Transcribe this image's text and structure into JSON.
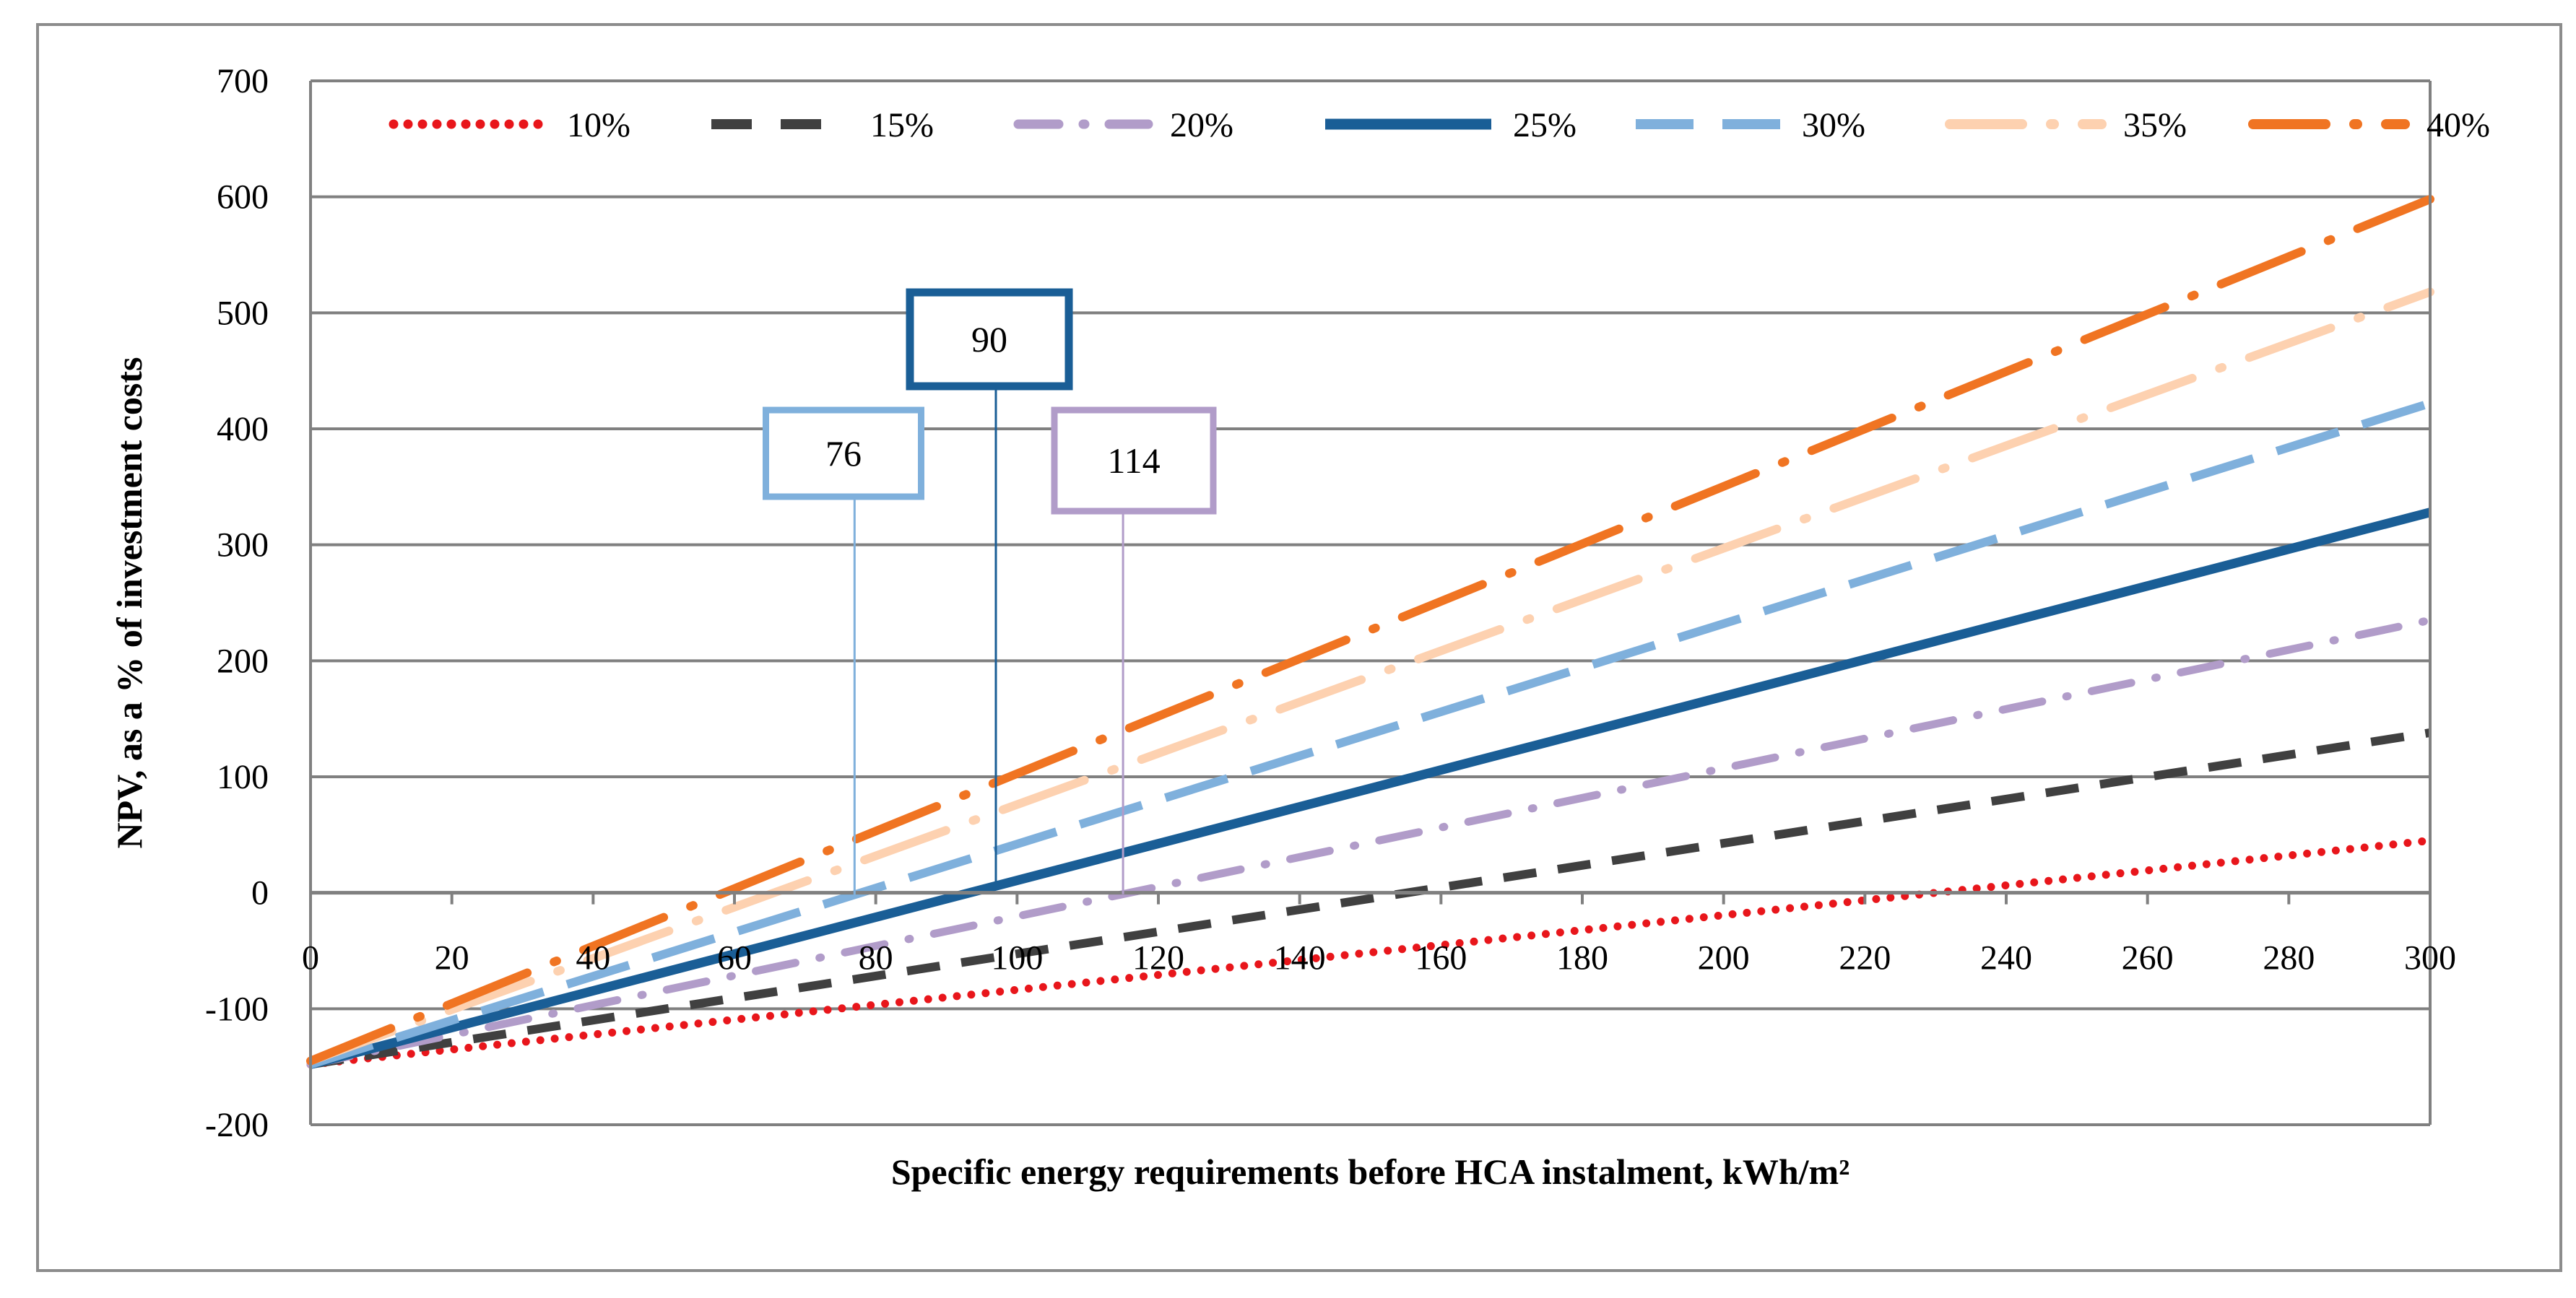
{
  "chart_data": {
    "type": "line",
    "xlabel": "Specific energy requirements before HCA instalment, kWh/m²",
    "ylabel": "NPV, as a % of investment costs",
    "xlim": [
      0,
      300
    ],
    "ylim": [
      -200,
      700
    ],
    "x_ticks": [
      0,
      20,
      40,
      60,
      80,
      100,
      120,
      140,
      160,
      180,
      200,
      220,
      240,
      260,
      280,
      300
    ],
    "y_ticks": [
      -200,
      -100,
      0,
      100,
      200,
      300,
      400,
      500,
      600,
      700
    ],
    "x": [
      0,
      300
    ],
    "grid": "horizontal",
    "legend_position": "top",
    "series": [
      {
        "name": "10%",
        "values": [
          -148,
          45
        ],
        "color": "#e8161b",
        "dash": "dot"
      },
      {
        "name": "15%",
        "values": [
          -148,
          138
        ],
        "color": "#404040",
        "dash": "dash"
      },
      {
        "name": "20%",
        "values": [
          -148,
          235
        ],
        "color": "#b19cc9",
        "dash": "dash-dot"
      },
      {
        "name": "25%",
        "values": [
          -148,
          328
        ],
        "color": "#1a5e96",
        "dash": "solid"
      },
      {
        "name": "30%",
        "values": [
          -148,
          422
        ],
        "color": "#7fb0dc",
        "dash": "long-dash"
      },
      {
        "name": "35%",
        "values": [
          -145,
          518
        ],
        "color": "#fdd1b0",
        "dash": "long-dash-dot"
      },
      {
        "name": "40%",
        "values": [
          -145,
          598
        ],
        "color": "#f07422",
        "dash": "long-dash-dot"
      }
    ],
    "annotations": [
      {
        "label": "76",
        "x": 77,
        "series": "30%",
        "color": "#7fb0dc"
      },
      {
        "label": "90",
        "x": 97,
        "series": "25%",
        "color": "#1a5e96"
      },
      {
        "label": "114",
        "x": 115,
        "series": "20%",
        "color": "#b19cc9"
      }
    ]
  }
}
